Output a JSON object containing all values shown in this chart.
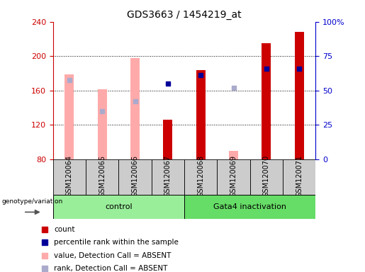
{
  "title": "GDS3663 / 1454219_at",
  "samples": [
    "GSM120064",
    "GSM120065",
    "GSM120066",
    "GSM120067",
    "GSM120068",
    "GSM120069",
    "GSM120070",
    "GSM120071"
  ],
  "count_values": [
    null,
    null,
    null,
    126,
    184,
    null,
    215,
    228
  ],
  "count_color": "#cc0000",
  "percentile_rank_values": [
    null,
    null,
    null,
    168,
    178,
    null,
    185,
    185
  ],
  "percentile_rank_color": "#000099",
  "absent_value_values": [
    179,
    161,
    198,
    null,
    null,
    90,
    null,
    null
  ],
  "absent_value_color": "#ffaaaa",
  "absent_rank_values": [
    172,
    136,
    147,
    null,
    null,
    163,
    null,
    null
  ],
  "absent_rank_color": "#aaaacc",
  "ylim_left": [
    80,
    240
  ],
  "ylim_right": [
    0,
    100
  ],
  "yticks_left": [
    80,
    120,
    160,
    200,
    240
  ],
  "yticks_right": [
    0,
    25,
    50,
    75,
    100
  ],
  "yticklabels_right": [
    "0",
    "25",
    "50",
    "75",
    "100%"
  ],
  "left_axis_color": "#cc0000",
  "right_axis_color": "#0000cc",
  "bar_width": 0.28,
  "plot_bg_color": "#ffffff",
  "sample_box_color": "#cccccc",
  "group_color_control": "#99ee99",
  "group_color_gata4": "#66dd66",
  "legend_items": [
    {
      "color": "#cc0000",
      "label": "count"
    },
    {
      "color": "#000099",
      "label": "percentile rank within the sample"
    },
    {
      "color": "#ffaaaa",
      "label": "value, Detection Call = ABSENT"
    },
    {
      "color": "#aaaacc",
      "label": "rank, Detection Call = ABSENT"
    }
  ]
}
